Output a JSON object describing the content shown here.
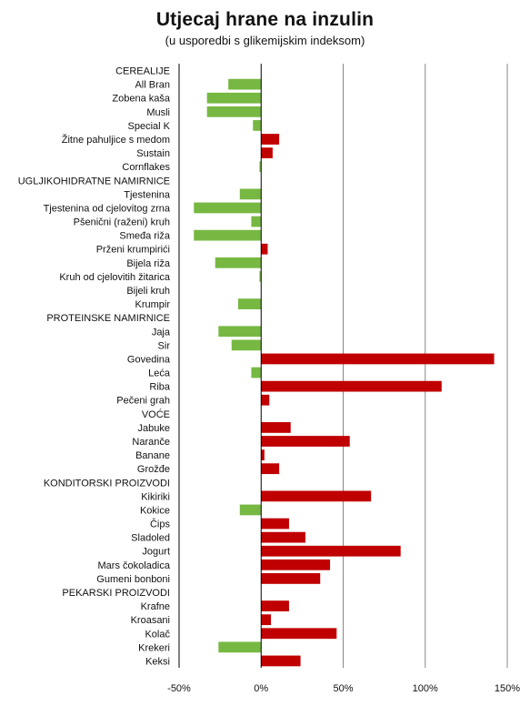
{
  "chart_data": {
    "type": "bar",
    "orientation": "horizontal",
    "title": "Utjecaj hrane na inzulin",
    "subtitle": "(u usporedbi s glikemijskim indeksom)",
    "xlim": [
      -50,
      150
    ],
    "xticks": [
      -50,
      0,
      50,
      100,
      150
    ],
    "xtick_labels": [
      "-50%",
      "0%",
      "50%",
      "100%",
      "150%"
    ],
    "grid": "vertical",
    "colors": {
      "positive": "#c00000",
      "negative": "#77b843",
      "grid": "#888888",
      "axis": "#000000"
    },
    "categories": [
      "CEREALIJE",
      "All Bran",
      "Zobena kaša",
      "Musli",
      "Special K",
      "Žitne pahuljice s medom",
      "Sustain",
      "Cornflakes",
      "UGLJIKOHIDRATNE NAMIRNICE",
      "Tjestenina",
      "Tjestenina od cjelovitog zrna",
      "Pšenični (raženi) kruh",
      "Smeđa riža",
      "Prženi krumpirići",
      "Bijela riža",
      "Kruh od cjelovitih žitarica",
      "Bijeli kruh",
      "Krumpir",
      "PROTEINSKE NAMIRNICE",
      "Jaja",
      "Sir",
      "Govedina",
      "Leća",
      "Riba",
      "Pečeni grah",
      "VOĆE",
      "Jabuke",
      "Naranče",
      "Banane",
      "Grožđe",
      "KONDITORSKI PROIZVODI",
      "Kikiriki",
      "Kokice",
      "Čips",
      "Sladoled",
      "Jogurt",
      "Mars čokoladica",
      "Gumeni bonboni",
      "PEKARSKI PROIZVODI",
      "Krafne",
      "Kroasani",
      "Kolač",
      "Krekeri",
      "Keksi"
    ],
    "values": [
      null,
      -20,
      -33,
      -33,
      -5,
      11,
      7,
      -1,
      null,
      -13,
      -41,
      -6,
      -41,
      4,
      -28,
      -1,
      0,
      -14,
      null,
      -26,
      -18,
      142,
      -6,
      110,
      5,
      null,
      18,
      54,
      2,
      11,
      null,
      67,
      -13,
      17,
      27,
      85,
      42,
      36,
      null,
      17,
      6,
      46,
      -26,
      24
    ]
  }
}
